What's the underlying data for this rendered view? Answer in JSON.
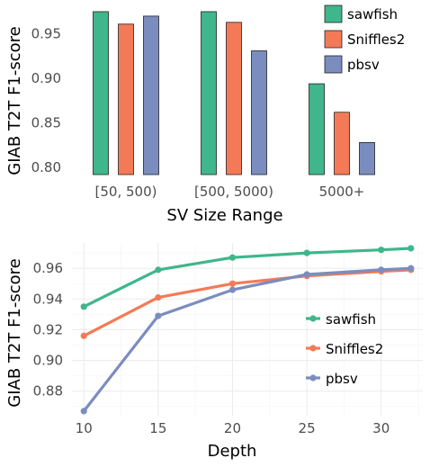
{
  "colors": {
    "sawfish": "#3fb68b",
    "Sniffles2": "#f47a57",
    "pbsv": "#7b8dbf"
  },
  "chart_data": [
    {
      "type": "bar",
      "categories": [
        "[50, 500)",
        "[500, 5000)",
        "5000+"
      ],
      "series": [
        {
          "name": "sawfish",
          "values": [
            0.975,
            0.975,
            0.894
          ]
        },
        {
          "name": "Sniffles2",
          "values": [
            0.961,
            0.963,
            0.862
          ]
        },
        {
          "name": "pbsv",
          "values": [
            0.97,
            0.931,
            0.828
          ]
        }
      ],
      "xlabel": "SV Size Range",
      "ylabel": "GIAB T2T F1-score",
      "ylim": [
        0.79,
        0.98
      ],
      "yticks": [
        "0.80",
        "0.85",
        "0.90",
        "0.95"
      ],
      "legend_position": "top-right",
      "grid": false
    },
    {
      "type": "line",
      "x": [
        10,
        15,
        20,
        25,
        30,
        32
      ],
      "series": [
        {
          "name": "sawfish",
          "values": [
            0.935,
            0.959,
            0.967,
            0.97,
            0.972,
            0.973
          ]
        },
        {
          "name": "Sniffles2",
          "values": [
            0.916,
            0.941,
            0.95,
            0.955,
            0.958,
            0.959
          ]
        },
        {
          "name": "pbsv",
          "values": [
            0.867,
            0.929,
            0.946,
            0.956,
            0.959,
            0.96
          ]
        }
      ],
      "xlabel": "Depth",
      "ylabel": "GIAB T2T F1-score",
      "xlim": [
        9.2,
        32.8
      ],
      "ylim": [
        0.864,
        0.9765
      ],
      "xticks": [
        "10",
        "15",
        "20",
        "25",
        "30"
      ],
      "yticks": [
        "0.88",
        "0.90",
        "0.92",
        "0.94",
        "0.96"
      ],
      "legend_position": "right",
      "grid": true
    }
  ]
}
